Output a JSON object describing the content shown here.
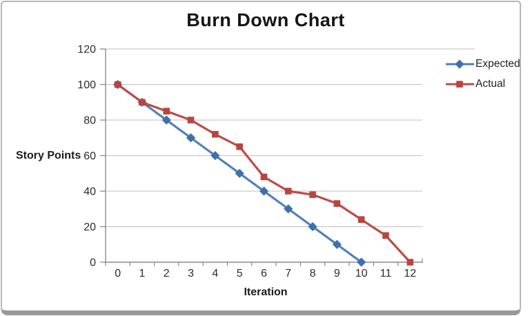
{
  "chart_data": {
    "type": "line",
    "title": "Burn Down Chart",
    "xlabel": "Iteration",
    "ylabel": "Story Points",
    "x": [
      0,
      1,
      2,
      3,
      4,
      5,
      6,
      7,
      8,
      9,
      10,
      11,
      12
    ],
    "ylim": [
      0,
      120
    ],
    "ytick_step": 20,
    "ytick_labels": [
      "0",
      "20",
      "40",
      "60",
      "80",
      "100",
      "120"
    ],
    "grid": true,
    "legend_position": "right",
    "series": [
      {
        "name": "Expected",
        "marker": "diamond",
        "color": "#4f7fba",
        "marker_color": "#3f70ad",
        "values": [
          100,
          90,
          80,
          70,
          60,
          50,
          40,
          30,
          20,
          10,
          0
        ]
      },
      {
        "name": "Actual",
        "marker": "square",
        "color": "#bd4b45",
        "marker_color": "#b8453f",
        "values": [
          100,
          90,
          85,
          80,
          72,
          65,
          48,
          40,
          38,
          33,
          24,
          15,
          0
        ]
      }
    ]
  },
  "colors": {
    "background": "#ffffff",
    "grid": "#c9c9c9",
    "axis": "#8c8c8c",
    "tick_text": "#2b2b2b",
    "title_text": "#141414",
    "frame_border": "#b6b6b6",
    "frame_bottom": "#999999"
  }
}
